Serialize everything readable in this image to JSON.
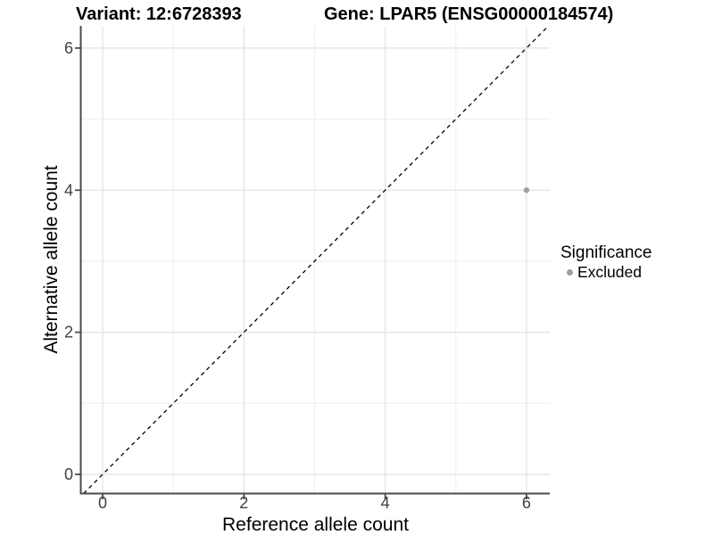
{
  "header": {
    "variant_title": "Variant: 12:6728393",
    "gene_title": "Gene: LPAR5 (ENSG00000184574)"
  },
  "axes": {
    "x_label": "Reference allele count",
    "y_label": "Alternative allele count",
    "x_tick_labels": [
      "0",
      "2",
      "4",
      "6"
    ],
    "y_tick_labels": [
      "0",
      "2",
      "4",
      "6"
    ]
  },
  "legend": {
    "title": "Significance",
    "items": [
      {
        "label": "Excluded",
        "color": "#a0a0a0"
      }
    ]
  },
  "colors": {
    "point": "#a0a0a0",
    "grid_major": "#e2e2e2",
    "grid_minor": "#eeeeee",
    "axis_line": "#4a4a4a",
    "tick_label": "#404040",
    "reference_line": "#000000",
    "background": "#ffffff"
  },
  "chart_data": {
    "type": "scatter",
    "titles": [
      "Variant: 12:6728393",
      "Gene: LPAR5 (ENSG00000184574)"
    ],
    "xlabel": "Reference allele count",
    "ylabel": "Alternative allele count",
    "xlim": [
      -0.31,
      6.33
    ],
    "ylim": [
      -0.27,
      6.3
    ],
    "x_ticks": [
      0,
      2,
      4,
      6
    ],
    "y_ticks": [
      0,
      2,
      4,
      6
    ],
    "x_minor_ticks": [
      1,
      3,
      5
    ],
    "y_minor_ticks": [
      1,
      3,
      5
    ],
    "grid": "on",
    "legend_title": "Significance",
    "legend_position": "right",
    "series": [
      {
        "name": "Excluded",
        "color": "#a0a0a0",
        "marker": "circle",
        "points": [
          {
            "x": 6,
            "y": 4
          }
        ]
      }
    ],
    "reference_line": {
      "kind": "identity",
      "equation": "y = x",
      "style": "dashed",
      "color": "#000000"
    }
  }
}
